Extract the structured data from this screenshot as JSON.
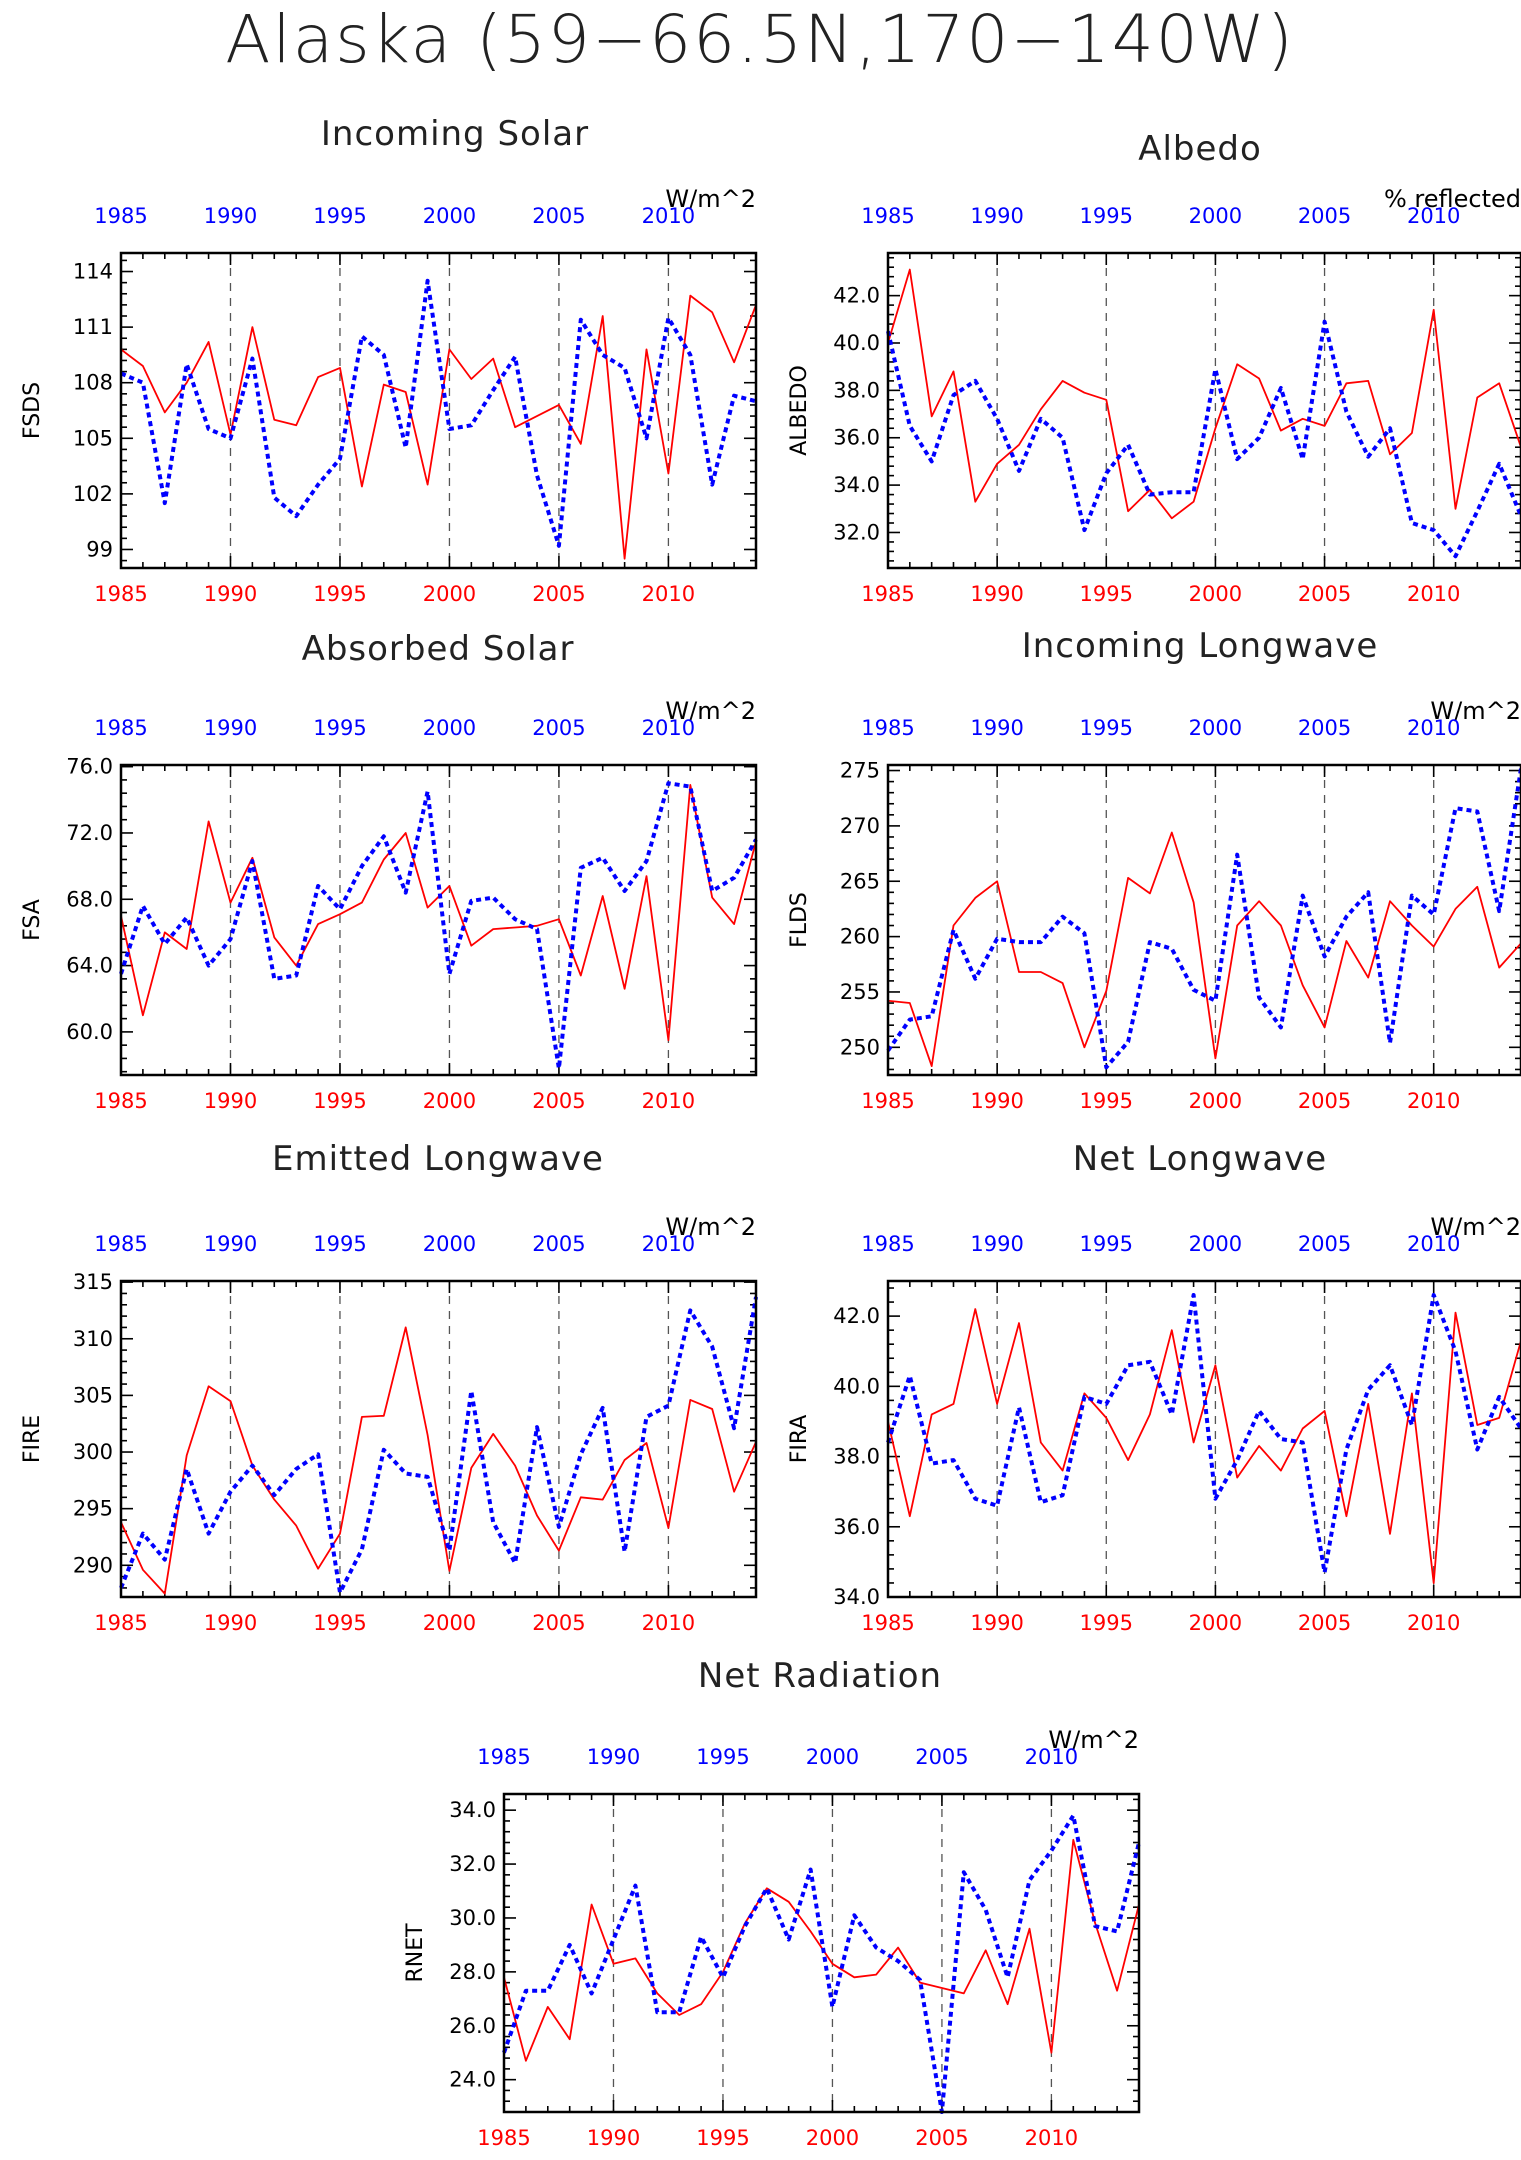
{
  "title": "Alaska (59−66.5N,170−140W)",
  "colors": {
    "red": "#ff0000",
    "blue": "#0000ff",
    "axis": "#000000"
  },
  "chart_data": [
    {
      "type": "line",
      "title": "Incoming Solar",
      "ylabel": "FSDS",
      "units": "W/m^2",
      "ylim": [
        98,
        115
      ],
      "yticks": [
        99,
        102,
        105,
        108,
        111,
        114
      ],
      "ytick_labels": [
        "99",
        "102",
        "105",
        "108",
        "111",
        "114"
      ],
      "x_bottom": [
        1985,
        1986,
        1987,
        1988,
        1989,
        1990,
        1991,
        1992,
        1993,
        1994,
        1995,
        1996,
        1997,
        1998,
        1999,
        2000,
        2001,
        2002,
        2003,
        2004,
        2005,
        2006,
        2007,
        2008,
        2009,
        2010,
        2011,
        2012,
        2013,
        2014
      ],
      "xtick_labels": [
        "1985",
        "1990",
        "1995",
        "2000",
        "2005",
        "2010"
      ],
      "series": [
        {
          "style": "solid",
          "color": "#ff0000",
          "values": [
            109.8,
            108.9,
            106.4,
            108,
            110.2,
            105.2,
            111.0,
            106,
            105.7,
            108.3,
            108.8,
            102.4,
            107.9,
            107.5,
            102.5,
            109.8,
            108.2,
            109.3,
            105.6,
            106.2,
            106.8,
            104.7,
            111.6,
            98.5,
            109.8,
            103.1,
            112.7,
            111.8,
            109.1,
            112.2
          ]
        },
        {
          "style": "dotted",
          "color": "#0000ff",
          "values": [
            108.5,
            108,
            101.5,
            109,
            105.5,
            105,
            109.3,
            101.8,
            100.8,
            102.5,
            103.9,
            110.5,
            109.5,
            104.5,
            113.5,
            105.5,
            105.7,
            107.6,
            109.4,
            103.0,
            99.2,
            111.4,
            109.5,
            108.8,
            105.0,
            111.5,
            109.5,
            102.5,
            107.3,
            107.0
          ]
        }
      ]
    },
    {
      "type": "line",
      "title": "Albedo",
      "ylabel": "ALBEDO",
      "units": "% reflected",
      "ylim": [
        30.5,
        43.8
      ],
      "yticks": [
        32,
        34,
        36,
        38,
        40,
        42
      ],
      "ytick_labels": [
        "32.0",
        "34.0",
        "36.0",
        "38.0",
        "40.0",
        "42.0"
      ],
      "x_bottom": [
        1985,
        1986,
        1987,
        1988,
        1989,
        1990,
        1991,
        1992,
        1993,
        1994,
        1995,
        1996,
        1997,
        1998,
        1999,
        2000,
        2001,
        2002,
        2003,
        2004,
        2005,
        2006,
        2007,
        2008,
        2009,
        2010,
        2011,
        2012,
        2013,
        2014
      ],
      "xtick_labels": [
        "1985",
        "1990",
        "1995",
        "2000",
        "2005",
        "2010"
      ],
      "series": [
        {
          "style": "solid",
          "color": "#ff0000",
          "values": [
            40,
            43.1,
            36.9,
            38.8,
            33.3,
            34.9,
            35.7,
            37.2,
            38.4,
            37.9,
            37.6,
            32.9,
            33.8,
            32.6,
            33.3,
            36.4,
            39.1,
            38.5,
            36.3,
            36.8,
            36.5,
            38.3,
            38.4,
            35.3,
            36.2,
            41.4,
            33,
            37.7,
            38.3,
            35.6
          ]
        },
        {
          "style": "dotted",
          "color": "#0000ff",
          "values": [
            40.5,
            36.5,
            35.0,
            37.8,
            38.4,
            36.8,
            34.6,
            36.8,
            36.0,
            32.1,
            34.5,
            35.7,
            33.6,
            33.7,
            33.7,
            38.9,
            35.1,
            36.0,
            38.1,
            35.1,
            40.9,
            37.1,
            35.2,
            36.4,
            32.4,
            32.1,
            31.0,
            32.9,
            34.9,
            32.7
          ]
        }
      ]
    },
    {
      "type": "line",
      "title": "Absorbed Solar",
      "ylabel": "FSA",
      "units": "W/m^2",
      "ylim": [
        57.4,
        76.1
      ],
      "yticks": [
        60,
        64,
        68,
        72,
        76
      ],
      "ytick_labels": [
        "60.0",
        "64.0",
        "68.0",
        "72.0",
        "76.0"
      ],
      "x_bottom": [
        1985,
        1986,
        1987,
        1988,
        1989,
        1990,
        1991,
        1992,
        1993,
        1994,
        1995,
        1996,
        1997,
        1998,
        1999,
        2000,
        2001,
        2002,
        2003,
        2004,
        2005,
        2006,
        2007,
        2008,
        2009,
        2010,
        2011,
        2012,
        2013,
        2014
      ],
      "xtick_labels": [
        "1985",
        "1990",
        "1995",
        "2000",
        "2005",
        "2010"
      ],
      "series": [
        {
          "style": "solid",
          "color": "#ff0000",
          "values": [
            67,
            61,
            66,
            65,
            72.7,
            67.8,
            70.5,
            65.7,
            64,
            66.5,
            67.1,
            67.8,
            70.4,
            72,
            67.5,
            68.8,
            65.2,
            66.2,
            66.3,
            66.4,
            66.8,
            63.4,
            68.2,
            62.6,
            69.4,
            59.5,
            74.9,
            68.1,
            66.5,
            71.5
          ]
        },
        {
          "style": "dotted",
          "color": "#0000ff",
          "values": [
            63.5,
            67.6,
            65.3,
            66.9,
            64.0,
            65.6,
            70.3,
            63.2,
            63.4,
            68.8,
            67.4,
            70,
            71.8,
            68.4,
            74.5,
            63.5,
            67.9,
            68.1,
            66.8,
            66.2,
            57.8,
            69.9,
            70.5,
            68.5,
            70.3,
            75,
            74.8,
            68.5,
            69.3,
            71.6
          ]
        }
      ]
    },
    {
      "type": "line",
      "title": "Incoming Longwave",
      "ylabel": "FLDS",
      "units": "W/m^2",
      "ylim": [
        247.5,
        275.5
      ],
      "yticks": [
        250,
        255,
        260,
        265,
        270,
        275
      ],
      "ytick_labels": [
        "250",
        "255",
        "260",
        "265",
        "270",
        "275"
      ],
      "x_bottom": [
        1985,
        1986,
        1987,
        1988,
        1989,
        1990,
        1991,
        1992,
        1993,
        1994,
        1995,
        1996,
        1997,
        1998,
        1999,
        2000,
        2001,
        2002,
        2003,
        2004,
        2005,
        2006,
        2007,
        2008,
        2009,
        2010,
        2011,
        2012,
        2013,
        2014
      ],
      "xtick_labels": [
        "1985",
        "1990",
        "1995",
        "2000",
        "2005",
        "2010"
      ],
      "series": [
        {
          "style": "solid",
          "color": "#ff0000",
          "values": [
            254.2,
            254,
            248.3,
            261,
            263.5,
            265,
            256.8,
            256.8,
            255.8,
            250,
            255.1,
            265.3,
            263.9,
            269.4,
            263.1,
            249,
            261,
            263.2,
            261,
            255.6,
            251.8,
            259.6,
            256.3,
            263.2,
            261,
            259.1,
            262.5,
            264.5,
            257.2,
            259.4
          ]
        },
        {
          "style": "dotted",
          "color": "#0000ff",
          "values": [
            249.7,
            252.5,
            252.8,
            260.6,
            256.2,
            259.8,
            259.5,
            259.5,
            261.8,
            260.3,
            248.2,
            250.5,
            259.5,
            258.9,
            255.2,
            254.2,
            267.4,
            254.5,
            251.8,
            263.7,
            258.2,
            261.8,
            264.0,
            250.4,
            263.7,
            262,
            271.6,
            271.3,
            262.3,
            275.2
          ]
        }
      ]
    },
    {
      "type": "line",
      "title": "Emitted Longwave",
      "ylabel": "FIRE",
      "units": "W/m^2",
      "ylim": [
        287.2,
        315.1
      ],
      "yticks": [
        290,
        295,
        300,
        305,
        310,
        315
      ],
      "ytick_labels": [
        "290",
        "295",
        "300",
        "305",
        "310",
        "315"
      ],
      "x_bottom": [
        1985,
        1986,
        1987,
        1988,
        1989,
        1990,
        1991,
        1992,
        1993,
        1994,
        1995,
        1996,
        1997,
        1998,
        1999,
        2000,
        2001,
        2002,
        2003,
        2004,
        2005,
        2006,
        2007,
        2008,
        2009,
        2010,
        2011,
        2012,
        2013,
        2014
      ],
      "xtick_labels": [
        "1985",
        "1990",
        "1995",
        "2000",
        "2005",
        "2010"
      ],
      "series": [
        {
          "style": "solid",
          "color": "#ff0000",
          "values": [
            293.8,
            289.6,
            287.5,
            299.7,
            305.8,
            304.5,
            298.8,
            295.8,
            293.5,
            289.7,
            292.8,
            303.1,
            303.2,
            311,
            301.5,
            289.5,
            298.6,
            301.6,
            298.8,
            294.4,
            291.3,
            296,
            295.8,
            299.3,
            300.8,
            293.3,
            304.6,
            303.8,
            296.5,
            300.9
          ]
        },
        {
          "style": "dotted",
          "color": "#0000ff",
          "values": [
            288,
            292.8,
            290.5,
            298.5,
            292.8,
            296.5,
            298.8,
            296.2,
            298.5,
            299.8,
            287.6,
            291.4,
            300.2,
            298.1,
            297.8,
            291.3,
            305.4,
            293.8,
            290.2,
            302.2,
            293.4,
            299.8,
            303.9,
            291.2,
            303.1,
            304.1,
            312.5,
            309.3,
            302.1,
            313.7
          ]
        }
      ]
    },
    {
      "type": "line",
      "title": "Net Longwave",
      "ylabel": "FIRA",
      "units": "W/m^2",
      "ylim": [
        34,
        43
      ],
      "yticks": [
        34,
        36,
        38,
        40,
        42
      ],
      "ytick_labels": [
        "34.0",
        "36.0",
        "38.0",
        "40.0",
        "42.0"
      ],
      "x_bottom": [
        1985,
        1986,
        1987,
        1988,
        1989,
        1990,
        1991,
        1992,
        1993,
        1994,
        1995,
        1996,
        1997,
        1998,
        1999,
        2000,
        2001,
        2002,
        2003,
        2004,
        2005,
        2006,
        2007,
        2008,
        2009,
        2010,
        2011,
        2012,
        2013,
        2014
      ],
      "xtick_labels": [
        "1985",
        "1990",
        "1995",
        "2000",
        "2005",
        "2010"
      ],
      "series": [
        {
          "style": "solid",
          "color": "#ff0000",
          "values": [
            39,
            36.3,
            39.2,
            39.5,
            42.2,
            39.5,
            41.8,
            38.4,
            37.6,
            39.8,
            39.1,
            37.9,
            39.2,
            41.6,
            38.4,
            40.6,
            37.4,
            38.3,
            37.6,
            38.8,
            39.3,
            36.3,
            39.5,
            35.8,
            39.8,
            34.4,
            42.1,
            38.9,
            39.1,
            41.3
          ]
        },
        {
          "style": "dotted",
          "color": "#0000ff",
          "values": [
            38.4,
            40.3,
            37.8,
            37.9,
            36.8,
            36.6,
            39.4,
            36.7,
            36.9,
            39.7,
            39.5,
            40.6,
            40.7,
            39.2,
            42.6,
            36.8,
            37.9,
            39.3,
            38.5,
            38.4,
            34.7,
            38.2,
            39.9,
            40.6,
            38.9,
            42.6,
            41.0,
            38.2,
            39.7,
            38.8
          ]
        }
      ]
    },
    {
      "type": "line",
      "title": "Net Radiation",
      "ylabel": "RNET",
      "units": "W/m^2",
      "ylim": [
        22.8,
        34.6
      ],
      "yticks": [
        24,
        26,
        28,
        30,
        32,
        34
      ],
      "ytick_labels": [
        "24.0",
        "26.0",
        "28.0",
        "30.0",
        "32.0",
        "34.0"
      ],
      "x_bottom": [
        1985,
        1986,
        1987,
        1988,
        1989,
        1990,
        1991,
        1992,
        1993,
        1994,
        1995,
        1996,
        1997,
        1998,
        1999,
        2000,
        2001,
        2002,
        2003,
        2004,
        2005,
        2006,
        2007,
        2008,
        2009,
        2010,
        2011,
        2012,
        2013,
        2014
      ],
      "xtick_labels": [
        "1985",
        "1990",
        "1995",
        "2000",
        "2005",
        "2010"
      ],
      "series": [
        {
          "style": "solid",
          "color": "#ff0000",
          "values": [
            27.8,
            24.7,
            26.7,
            25.5,
            30.5,
            28.3,
            28.5,
            27.2,
            26.4,
            26.8,
            28.0,
            29.8,
            31.1,
            30.6,
            29.5,
            28.3,
            27.8,
            27.9,
            28.9,
            27.6,
            27.4,
            27.2,
            28.8,
            26.8,
            29.6,
            25.0,
            32.9,
            29.8,
            27.3,
            30.5
          ]
        },
        {
          "style": "dotted",
          "color": "#0000ff",
          "values": [
            25,
            27.3,
            27.3,
            29,
            27.2,
            29.2,
            31.2,
            26.5,
            26.5,
            29.3,
            27.8,
            29.7,
            31.1,
            29.2,
            31.8,
            26.7,
            30.1,
            28.9,
            28.4,
            27.7,
            22.8,
            31.7,
            30.3,
            27.8,
            31.4,
            32.5,
            33.8,
            29.7,
            29.5,
            32.8
          ]
        }
      ]
    }
  ]
}
